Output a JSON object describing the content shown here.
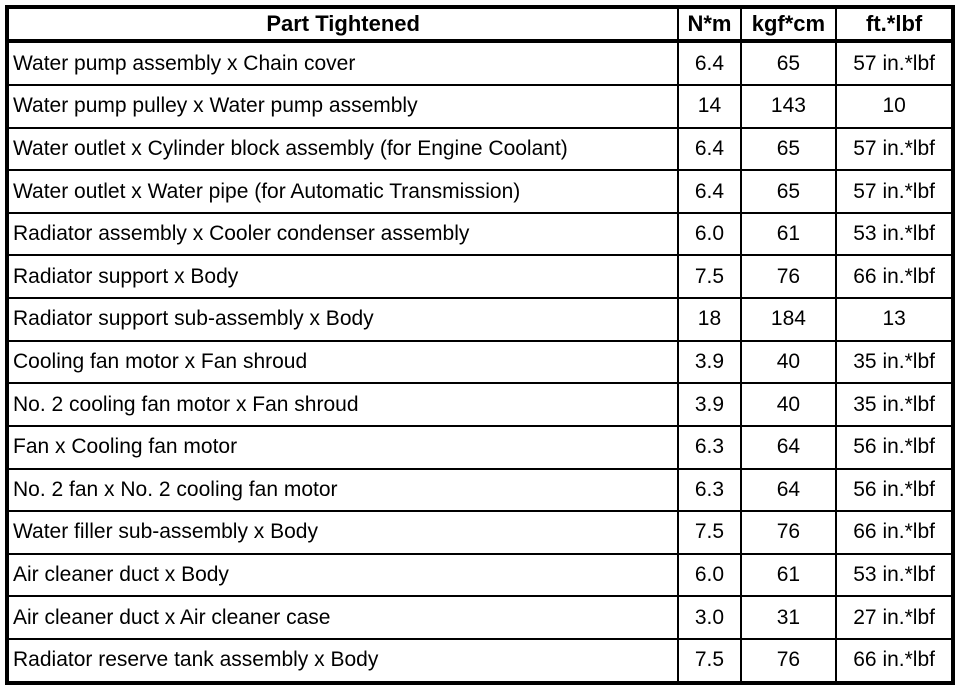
{
  "table": {
    "headers": [
      "Part Tightened",
      "N*m",
      "kgf*cm",
      "ft.*lbf"
    ],
    "rows": [
      [
        "Water pump assembly x Chain cover",
        "6.4",
        "65",
        "57 in.*lbf"
      ],
      [
        "Water pump pulley x Water pump assembly",
        "14",
        "143",
        "10"
      ],
      [
        "Water outlet x Cylinder block assembly (for Engine Coolant)",
        "6.4",
        "65",
        "57 in.*lbf"
      ],
      [
        "Water outlet x Water pipe (for Automatic Transmission)",
        "6.4",
        "65",
        "57 in.*lbf"
      ],
      [
        "Radiator assembly x Cooler condenser assembly",
        "6.0",
        "61",
        "53 in.*lbf"
      ],
      [
        "Radiator support x Body",
        "7.5",
        "76",
        "66 in.*lbf"
      ],
      [
        "Radiator support sub-assembly x Body",
        "18",
        "184",
        "13"
      ],
      [
        "Cooling fan motor x Fan shroud",
        "3.9",
        "40",
        "35 in.*lbf"
      ],
      [
        "No. 2 cooling fan motor x Fan shroud",
        "3.9",
        "40",
        "35 in.*lbf"
      ],
      [
        "Fan x Cooling fan motor",
        "6.3",
        "64",
        "56 in.*lbf"
      ],
      [
        "No. 2 fan x No. 2 cooling fan motor",
        "6.3",
        "64",
        "56 in.*lbf"
      ],
      [
        "Water filler sub-assembly x Body",
        "7.5",
        "76",
        "66 in.*lbf"
      ],
      [
        "Air cleaner duct x Body",
        "6.0",
        "61",
        "53 in.*lbf"
      ],
      [
        "Air cleaner duct x Air cleaner case",
        "3.0",
        "31",
        "27 in.*lbf"
      ],
      [
        "Radiator reserve tank assembly x Body",
        "7.5",
        "76",
        "66 in.*lbf"
      ]
    ],
    "colors": {
      "border": "#000000",
      "background": "#ffffff",
      "text": "#000000"
    }
  }
}
